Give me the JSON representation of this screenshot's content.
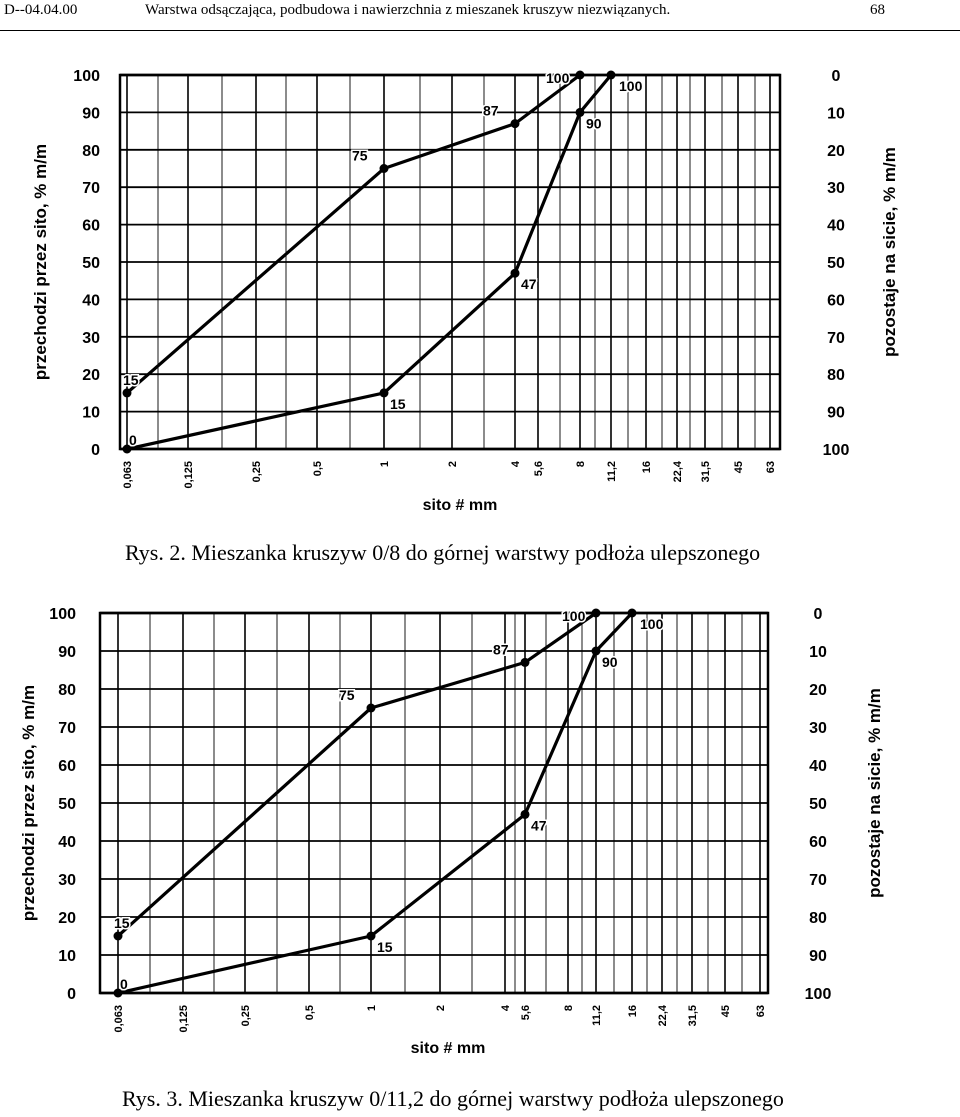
{
  "header": {
    "left": "D--04.04.00",
    "middle": "Warstwa odsączająca, podbudowa i nawierzchnia z mieszanek kruszyw niezwiązanych.",
    "page_number": "68"
  },
  "chart_data": [
    {
      "type": "line",
      "caption": "Rys. 2. Mieszanka kruszyw 0/8 do górnej warstwy podłoża ulepszonego",
      "xlabel": "sito # mm",
      "ylabel": "przechodzi przez sito, % m/m",
      "ylabel_right": "pozostaje na sicie, % m/m",
      "x_ticks": [
        "0,063",
        "0,125",
        "0,25",
        "0,5",
        "1",
        "2",
        "4",
        "5,6",
        "8",
        "11,2",
        "16",
        "22,4",
        "31,5",
        "45",
        "63"
      ],
      "y_ticks": [
        "100",
        "90",
        "80",
        "70",
        "60",
        "50",
        "40",
        "30",
        "20",
        "10",
        "0"
      ],
      "y_ticks_right": [
        "0",
        "10",
        "20",
        "30",
        "40",
        "50",
        "60",
        "70",
        "80",
        "90",
        "100"
      ],
      "ylim": [
        0,
        100
      ],
      "grid": true,
      "series": [
        {
          "x": [
            "0,063",
            "1",
            "4",
            "8"
          ],
          "y": [
            15,
            75,
            87,
            100
          ],
          "labels": [
            "15",
            "75",
            "87",
            "100"
          ]
        },
        {
          "x": [
            "0,063",
            "1",
            "4",
            "8",
            "11,2"
          ],
          "y": [
            0,
            15,
            47,
            90,
            100
          ],
          "labels": [
            "0",
            "15",
            "47",
            "90",
            "100"
          ]
        }
      ]
    },
    {
      "type": "line",
      "caption": "Rys. 3. Mieszanka kruszyw 0/11,2 do górnej warstwy podłoża ulepszonego",
      "xlabel": "sito # mm",
      "ylabel": "przechodzi przez sito, % m/m",
      "ylabel_right": "pozostaje na sicie, % m/m",
      "x_ticks": [
        "0,063",
        "0,125",
        "0,25",
        "0,5",
        "1",
        "2",
        "4",
        "5,6",
        "8",
        "11,2",
        "16",
        "22,4",
        "31,5",
        "45",
        "63"
      ],
      "y_ticks": [
        "100",
        "90",
        "80",
        "70",
        "60",
        "50",
        "40",
        "30",
        "20",
        "10",
        "0"
      ],
      "y_ticks_right": [
        "0",
        "10",
        "20",
        "30",
        "40",
        "50",
        "60",
        "70",
        "80",
        "90",
        "100"
      ],
      "ylim": [
        0,
        100
      ],
      "grid": true,
      "series": [
        {
          "x": [
            "0,063",
            "1",
            "5,6",
            "11,2"
          ],
          "y": [
            15,
            75,
            87,
            100
          ],
          "labels": [
            "15",
            "75",
            "87",
            "100"
          ]
        },
        {
          "x": [
            "0,063",
            "1",
            "5,6",
            "11,2",
            "16"
          ],
          "y": [
            0,
            15,
            47,
            90,
            100
          ],
          "labels": [
            "0",
            "15",
            "47",
            "90",
            "100"
          ]
        }
      ]
    }
  ]
}
